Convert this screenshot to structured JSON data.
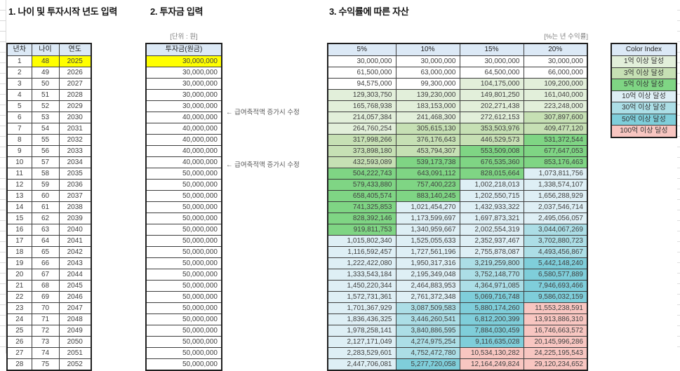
{
  "sections": {
    "age_input": {
      "title": "1. 나이 및 투자시작 년도 입력",
      "headers": [
        "년차",
        "나이",
        "연도"
      ],
      "rows": [
        [
          "1",
          "48",
          "2025"
        ],
        [
          "2",
          "49",
          "2026"
        ],
        [
          "3",
          "50",
          "2027"
        ],
        [
          "4",
          "51",
          "2028"
        ],
        [
          "5",
          "52",
          "2029"
        ],
        [
          "6",
          "53",
          "2030"
        ],
        [
          "7",
          "54",
          "2031"
        ],
        [
          "8",
          "55",
          "2032"
        ],
        [
          "9",
          "56",
          "2033"
        ],
        [
          "10",
          "57",
          "2034"
        ],
        [
          "11",
          "58",
          "2035"
        ],
        [
          "12",
          "59",
          "2036"
        ],
        [
          "13",
          "60",
          "2037"
        ],
        [
          "14",
          "61",
          "2038"
        ],
        [
          "15",
          "62",
          "2039"
        ],
        [
          "16",
          "63",
          "2040"
        ],
        [
          "17",
          "64",
          "2041"
        ],
        [
          "18",
          "65",
          "2042"
        ],
        [
          "19",
          "66",
          "2043"
        ],
        [
          "20",
          "67",
          "2044"
        ],
        [
          "21",
          "68",
          "2045"
        ],
        [
          "22",
          "69",
          "2046"
        ],
        [
          "23",
          "70",
          "2047"
        ],
        [
          "24",
          "71",
          "2048"
        ],
        [
          "25",
          "72",
          "2049"
        ],
        [
          "26",
          "73",
          "2050"
        ],
        [
          "27",
          "74",
          "2051"
        ],
        [
          "28",
          "75",
          "2052"
        ]
      ]
    },
    "investment": {
      "title": "2. 투자금 입력",
      "unit_label": "[단위 : 원]",
      "header": "투자금(원금)",
      "values": [
        "30,000,000",
        "30,000,000",
        "30,000,000",
        "30,000,000",
        "30,000,000",
        "40,000,000",
        "40,000,000",
        "40,000,000",
        "40,000,000",
        "40,000,000",
        "50,000,000",
        "50,000,000",
        "50,000,000",
        "50,000,000",
        "50,000,000",
        "50,000,000",
        "50,000,000",
        "50,000,000",
        "50,000,000",
        "50,000,000",
        "50,000,000",
        "50,000,000",
        "50,000,000",
        "50,000,000",
        "50,000,000",
        "50,000,000",
        "50,000,000",
        "50,000,000"
      ],
      "annotations": [
        {
          "row": 6,
          "text": "← 급여축적액 증가시 수정"
        },
        {
          "row": 11,
          "text": "← 급여축적액 증가시 수정"
        }
      ]
    },
    "returns": {
      "title": "3. 수익률에 따른 자산",
      "unit_label": "[%는 년 수익률]",
      "headers": [
        "5%",
        "10%",
        "15%",
        "20%"
      ],
      "rows": [
        [
          "30,000,000",
          "30,000,000",
          "30,000,000",
          "30,000,000"
        ],
        [
          "61,500,000",
          "63,000,000",
          "64,500,000",
          "66,000,000"
        ],
        [
          "94,575,000",
          "99,300,000",
          "104,175,000",
          "109,200,000"
        ],
        [
          "129,303,750",
          "139,230,000",
          "149,801,250",
          "161,040,000"
        ],
        [
          "165,768,938",
          "183,153,000",
          "202,271,438",
          "223,248,000"
        ],
        [
          "214,057,384",
          "241,468,300",
          "272,612,153",
          "307,897,600"
        ],
        [
          "264,760,254",
          "305,615,130",
          "353,503,976",
          "409,477,120"
        ],
        [
          "317,998,266",
          "376,176,643",
          "446,529,573",
          "531,372,544"
        ],
        [
          "373,898,180",
          "453,794,307",
          "553,509,008",
          "677,647,053"
        ],
        [
          "432,593,089",
          "539,173,738",
          "676,535,360",
          "853,176,463"
        ],
        [
          "504,222,743",
          "643,091,112",
          "828,015,664",
          "1,073,811,756"
        ],
        [
          "579,433,880",
          "757,400,223",
          "1,002,218,013",
          "1,338,574,107"
        ],
        [
          "658,405,574",
          "883,140,245",
          "1,202,550,715",
          "1,656,288,929"
        ],
        [
          "741,325,853",
          "1,021,454,270",
          "1,432,933,322",
          "2,037,546,714"
        ],
        [
          "828,392,146",
          "1,173,599,697",
          "1,697,873,321",
          "2,495,056,057"
        ],
        [
          "919,811,753",
          "1,340,959,667",
          "2,002,554,319",
          "3,044,067,269"
        ],
        [
          "1,015,802,340",
          "1,525,055,633",
          "2,352,937,467",
          "3,702,880,723"
        ],
        [
          "1,116,592,457",
          "1,727,561,196",
          "2,755,878,087",
          "4,493,456,867"
        ],
        [
          "1,222,422,080",
          "1,950,317,316",
          "3,219,259,800",
          "5,442,148,240"
        ],
        [
          "1,333,543,184",
          "2,195,349,048",
          "3,752,148,770",
          "6,580,577,889"
        ],
        [
          "1,450,220,344",
          "2,464,883,953",
          "4,364,971,085",
          "7,946,693,466"
        ],
        [
          "1,572,731,361",
          "2,761,372,348",
          "5,069,716,748",
          "9,586,032,159"
        ],
        [
          "1,701,367,929",
          "3,087,509,583",
          "5,880,174,260",
          "11,553,238,591"
        ],
        [
          "1,836,436,325",
          "3,446,260,541",
          "6,812,200,399",
          "13,913,886,310"
        ],
        [
          "1,978,258,141",
          "3,840,886,595",
          "7,884,030,459",
          "16,746,663,572"
        ],
        [
          "2,127,171,049",
          "4,274,975,254",
          "9,116,635,028",
          "20,145,996,286"
        ],
        [
          "2,283,529,601",
          "4,752,472,780",
          "10,534,130,282",
          "24,225,195,543"
        ],
        [
          "2,447,706,081",
          "5,277,720,058",
          "12,164,249,824",
          "29,120,234,652"
        ]
      ]
    }
  },
  "color_index": {
    "title": "Color Index",
    "items": [
      {
        "label": "1억 이상 달성",
        "min": 100000000,
        "color": "#E2EFDA"
      },
      {
        "label": "3억 이상 달성",
        "min": 300000000,
        "color": "#C6E0B4"
      },
      {
        "label": "5억 이상 달성",
        "min": 500000000,
        "color": "#7FD584"
      },
      {
        "label": "10억 이상 달성",
        "min": 1000000000,
        "color": "#DEEFF5"
      },
      {
        "label": "30억 이상 달성",
        "min": 3000000000,
        "color": "#ACDEE6"
      },
      {
        "label": "50억 이상 달성",
        "min": 5000000000,
        "color": "#7FCEDA"
      },
      {
        "label": "100억 이상 달성",
        "min": 10000000000,
        "color": "#F8C6C1"
      }
    ]
  },
  "colors": {
    "header_bg": "#DCE9F6",
    "highlight": "#FFFF00",
    "default_cell": "#FFFFFF"
  }
}
